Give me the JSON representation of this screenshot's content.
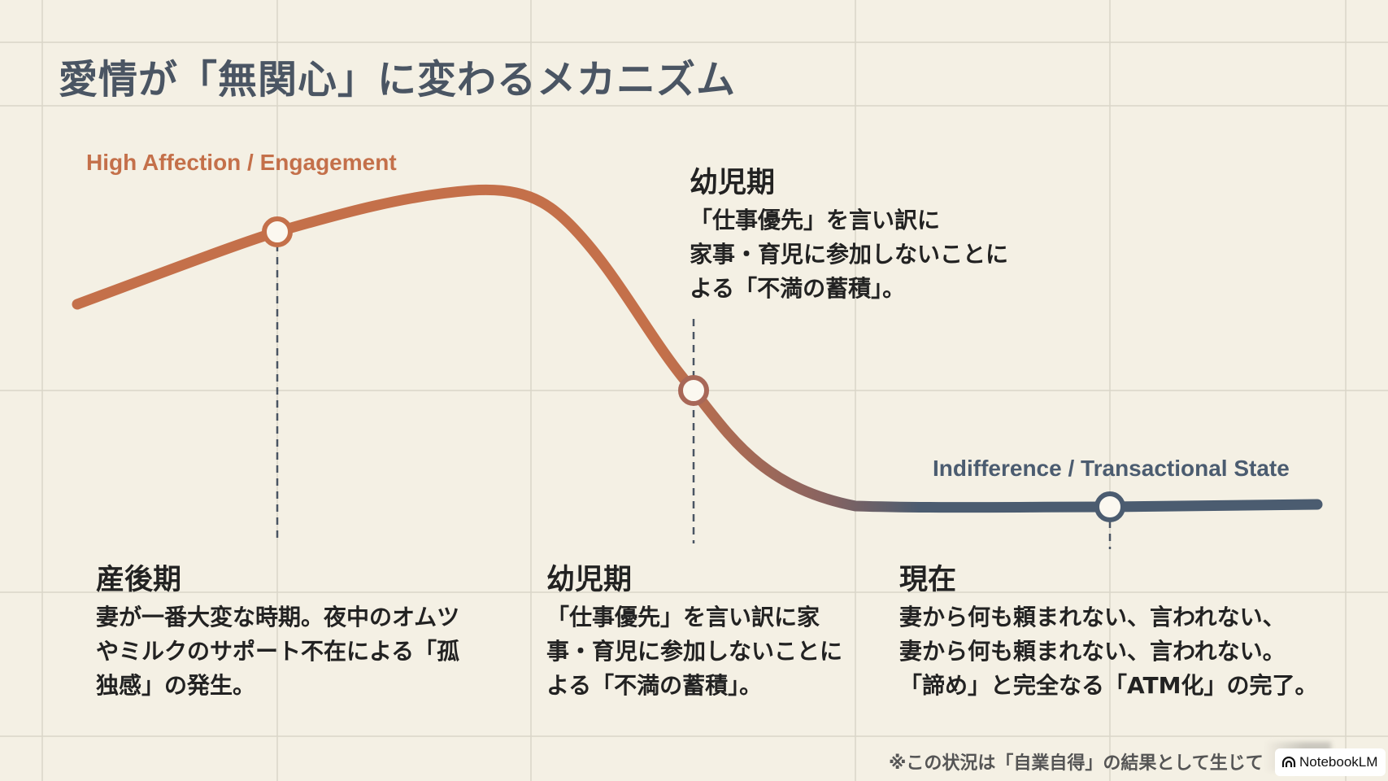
{
  "title": "愛情が「無関心」に変わるメカニズム",
  "labels": {
    "high": "High Affection / Engagement",
    "low": "Indifference / Transactional State"
  },
  "callout": {
    "heading": "幼児期",
    "lines": [
      "「仕事優先」を言い訳に",
      "家事・育児に参加しないことに",
      "よる「不満の蓄積」。"
    ]
  },
  "stages": [
    {
      "heading": "産後期",
      "lines": [
        "妻が一番大変な時期。夜中のオムツ",
        "やミルクのサポート不在による「孤",
        "独感」の発生。"
      ]
    },
    {
      "heading": "幼児期",
      "lines": [
        "「仕事優先」を言い訳に家",
        "事・育児に参加しないことに",
        "よる「不満の蓄積」。"
      ]
    },
    {
      "heading": "現在",
      "lines": [
        "妻から何も頼まれない、言われない、",
        "妻から何も頼まれない、言われない。",
        "「諦め」と完全なる「ATM化」の完了。"
      ]
    }
  ],
  "footnote": "※この状況は「自業自得」の結果として生じて",
  "badge": {
    "icon": "notebooklm-icon",
    "label": "NotebookLM"
  },
  "colors": {
    "background": "#f4f0e4",
    "high": "#c4704a",
    "low": "#4b5c70",
    "title": "#4a5563"
  }
}
